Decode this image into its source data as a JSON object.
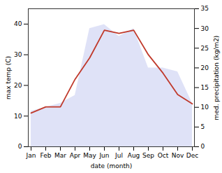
{
  "chart_data": {
    "type": "line",
    "categories": [
      "Jan",
      "Feb",
      "Mar",
      "Apr",
      "May",
      "Jun",
      "Jul",
      "Aug",
      "Sep",
      "Oct",
      "Nov",
      "Dec"
    ],
    "series": [
      {
        "type": "line",
        "color": "#c0392b",
        "values": [
          11,
          13,
          13,
          22,
          29,
          38,
          37,
          38,
          30,
          24,
          17,
          14
        ]
      },
      {
        "type": "area",
        "color": "#c5caf0",
        "axis": "y2",
        "values": [
          9,
          10,
          11,
          13,
          30,
          31,
          28,
          30,
          20,
          20,
          19,
          11
        ]
      }
    ],
    "xlabel": "date (month)",
    "ylabel": "max temp (C)",
    "y2label": "med. precipitation (kg/m2)",
    "ylim": [
      0,
      45
    ],
    "yticks": [
      0,
      10,
      20,
      30,
      40
    ],
    "y2lim": [
      0,
      35
    ],
    "y2ticks": [
      0,
      5,
      10,
      15,
      20,
      25,
      30,
      35
    ],
    "grid": false
  }
}
